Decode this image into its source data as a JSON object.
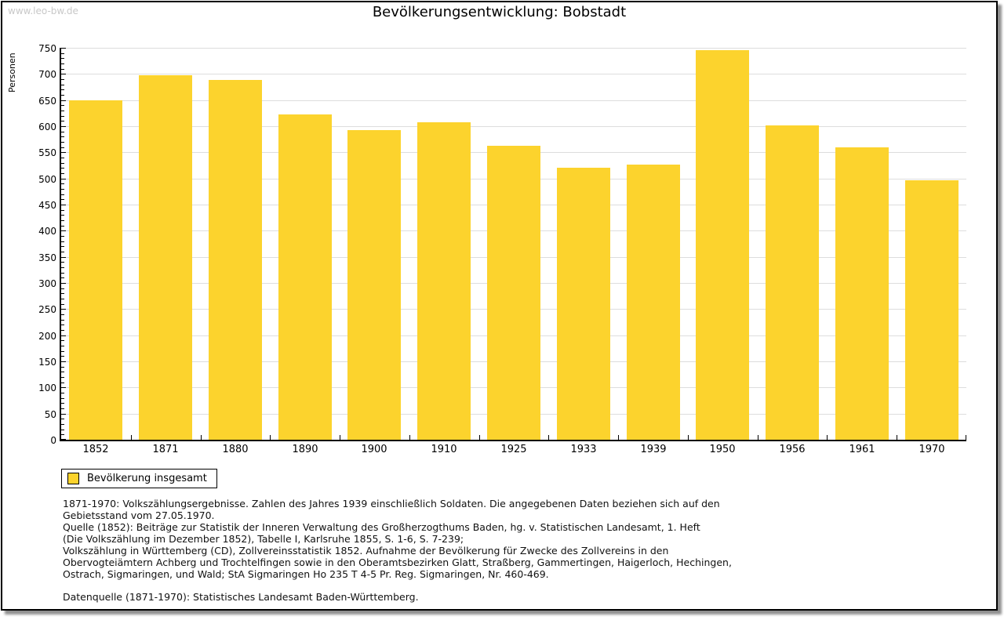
{
  "watermark": "www.leo-bw.de",
  "title": "Bevölkerungsentwicklung: Bobstadt",
  "chart_data": {
    "type": "bar",
    "title": "Bevölkerungsentwicklung: Bobstadt",
    "xlabel": "",
    "ylabel": "Personen",
    "ylim": [
      0,
      750
    ],
    "ytick_step": 50,
    "yminor_step": 10,
    "grid": true,
    "bar_color": "#FCD32D",
    "categories": [
      "1852",
      "1871",
      "1880",
      "1890",
      "1900",
      "1910",
      "1925",
      "1933",
      "1939",
      "1950",
      "1956",
      "1961",
      "1970"
    ],
    "values": [
      650,
      697,
      688,
      622,
      592,
      607,
      563,
      520,
      526,
      745,
      602,
      559,
      497
    ],
    "legend": [
      {
        "label": "Bevölkerung insgesamt",
        "color": "#FCD32D"
      }
    ],
    "legend_position": "bottom-left"
  },
  "notes": {
    "lines": [
      "1871-1970: Volkszählungsergebnisse. Zahlen des Jahres 1939 einschließlich Soldaten. Die angegebenen Daten beziehen sich auf den",
      "Gebietsstand vom 27.05.1970.",
      "Quelle (1852): Beiträge zur Statistik der Inneren Verwaltung des Großherzogthums Baden, hg. v. Statistischen Landesamt, 1. Heft",
      "(Die Volkszählung im Dezember 1852), Tabelle I, Karlsruhe 1855, S. 1-6, S. 7-239;",
      "Volkszählung in Württemberg (CD), Zollvereinsstatistik 1852. Aufnahme der Bevölkerung für Zwecke des Zollvereins in den",
      "Obervogteiämtern Achberg und Trochtelfingen sowie in den Oberamtsbezirken Glatt, Straßberg, Gammertingen, Haigerloch, Hechingen,",
      "Ostrach, Sigmaringen, und Wald; StA Sigmaringen Ho 235 T 4-5 Pr. Reg. Sigmaringen, Nr. 460-469."
    ],
    "datenquelle": "Datenquelle (1871-1970): Statistisches Landesamt Baden-Württemberg."
  }
}
